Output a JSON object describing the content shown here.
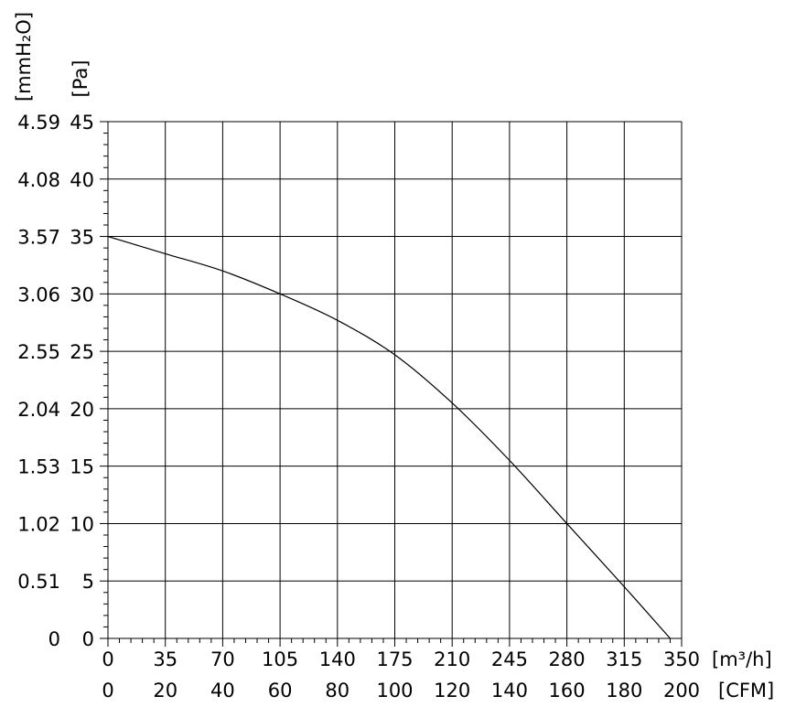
{
  "chart_data": {
    "type": "line",
    "title": "",
    "x_axes": [
      {
        "unit_label": "[m³/h]",
        "ticks": [
          0,
          35,
          70,
          105,
          140,
          175,
          210,
          245,
          280,
          315,
          350
        ],
        "range": [
          0,
          350
        ]
      },
      {
        "unit_label": "[CFM]",
        "ticks": [
          0,
          20,
          40,
          60,
          80,
          100,
          120,
          140,
          160,
          180,
          200
        ],
        "range": [
          0,
          200
        ]
      }
    ],
    "y_axes": [
      {
        "unit_label": "[mmH₂O]",
        "ticks": [
          "0",
          "0.51",
          "1.02",
          "1.53",
          "2.04",
          "2.55",
          "3.06",
          "3.57",
          "4.08",
          "4.59"
        ]
      },
      {
        "unit_label": "[Pa]",
        "ticks": [
          0,
          5,
          10,
          15,
          20,
          25,
          30,
          35,
          40,
          45
        ],
        "range": [
          0,
          45
        ]
      }
    ],
    "grid": true,
    "series": [
      {
        "x": [
          0,
          35,
          70,
          105,
          140,
          175,
          210,
          245,
          280,
          315,
          343
        ],
        "y": [
          35,
          33.5,
          32,
          30,
          27.7,
          24.7,
          20.5,
          15.5,
          10,
          4.5,
          0
        ]
      }
    ]
  }
}
